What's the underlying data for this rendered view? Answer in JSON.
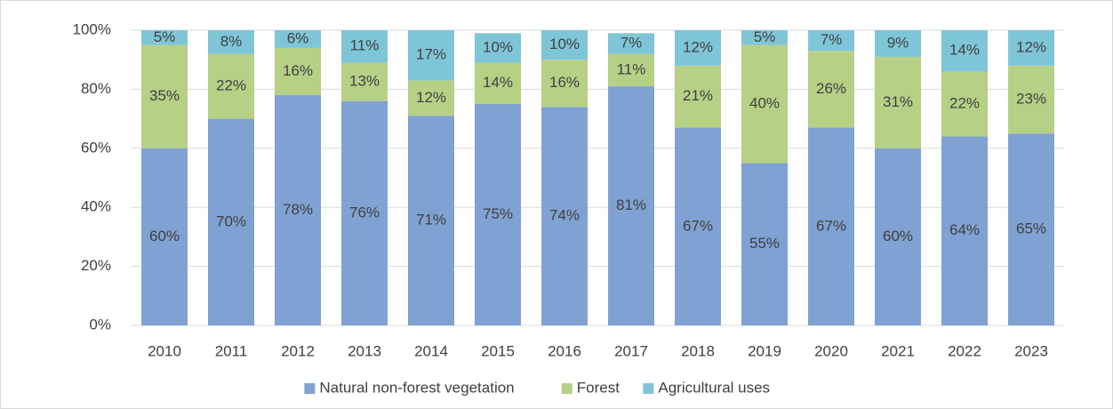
{
  "chart_data": {
    "type": "stacked_bar",
    "categories": [
      "2010",
      "2011",
      "2012",
      "2013",
      "2014",
      "2015",
      "2016",
      "2017",
      "2018",
      "2019",
      "2020",
      "2021",
      "2022",
      "2023"
    ],
    "series": [
      {
        "name": "Natural non-forest vegetation",
        "color": "#7fa2d2",
        "values": [
          60,
          70,
          78,
          76,
          71,
          75,
          74,
          81,
          67,
          55,
          67,
          60,
          64,
          65
        ],
        "value_labels": [
          "60%",
          "70%",
          "78%",
          "76%",
          "71%",
          "75%",
          "74%",
          "81%",
          "67%",
          "55%",
          "67%",
          "60%",
          "64%",
          "65%"
        ]
      },
      {
        "name": "Forest",
        "color": "#b6d086",
        "values": [
          35,
          22,
          16,
          13,
          12,
          14,
          16,
          11,
          21,
          40,
          26,
          31,
          22,
          23
        ],
        "value_labels": [
          "35%",
          "22%",
          "16%",
          "13%",
          "12%",
          "14%",
          "16%",
          "11%",
          "21%",
          "40%",
          "26%",
          "31%",
          "22%",
          "23%"
        ]
      },
      {
        "name": "Agricultural uses",
        "color": "#7fc5d8",
        "values": [
          5,
          8,
          6,
          11,
          17,
          10,
          10,
          7,
          12,
          5,
          7,
          9,
          14,
          12
        ],
        "value_labels": [
          "5%",
          "8%",
          "6%",
          "11%",
          "17%",
          "10%",
          "10%",
          "7%",
          "12%",
          "5%",
          "7%",
          "9%",
          "14%",
          "12%"
        ]
      }
    ],
    "ylim": [
      0,
      100
    ],
    "yticks": [
      {
        "value": 0,
        "label": "0%"
      },
      {
        "value": 20,
        "label": "20%"
      },
      {
        "value": 40,
        "label": "40%"
      },
      {
        "value": 60,
        "label": "60%"
      },
      {
        "value": 80,
        "label": "80%"
      },
      {
        "value": 100,
        "label": "100%"
      }
    ],
    "grid": true,
    "legend": "bottom"
  }
}
